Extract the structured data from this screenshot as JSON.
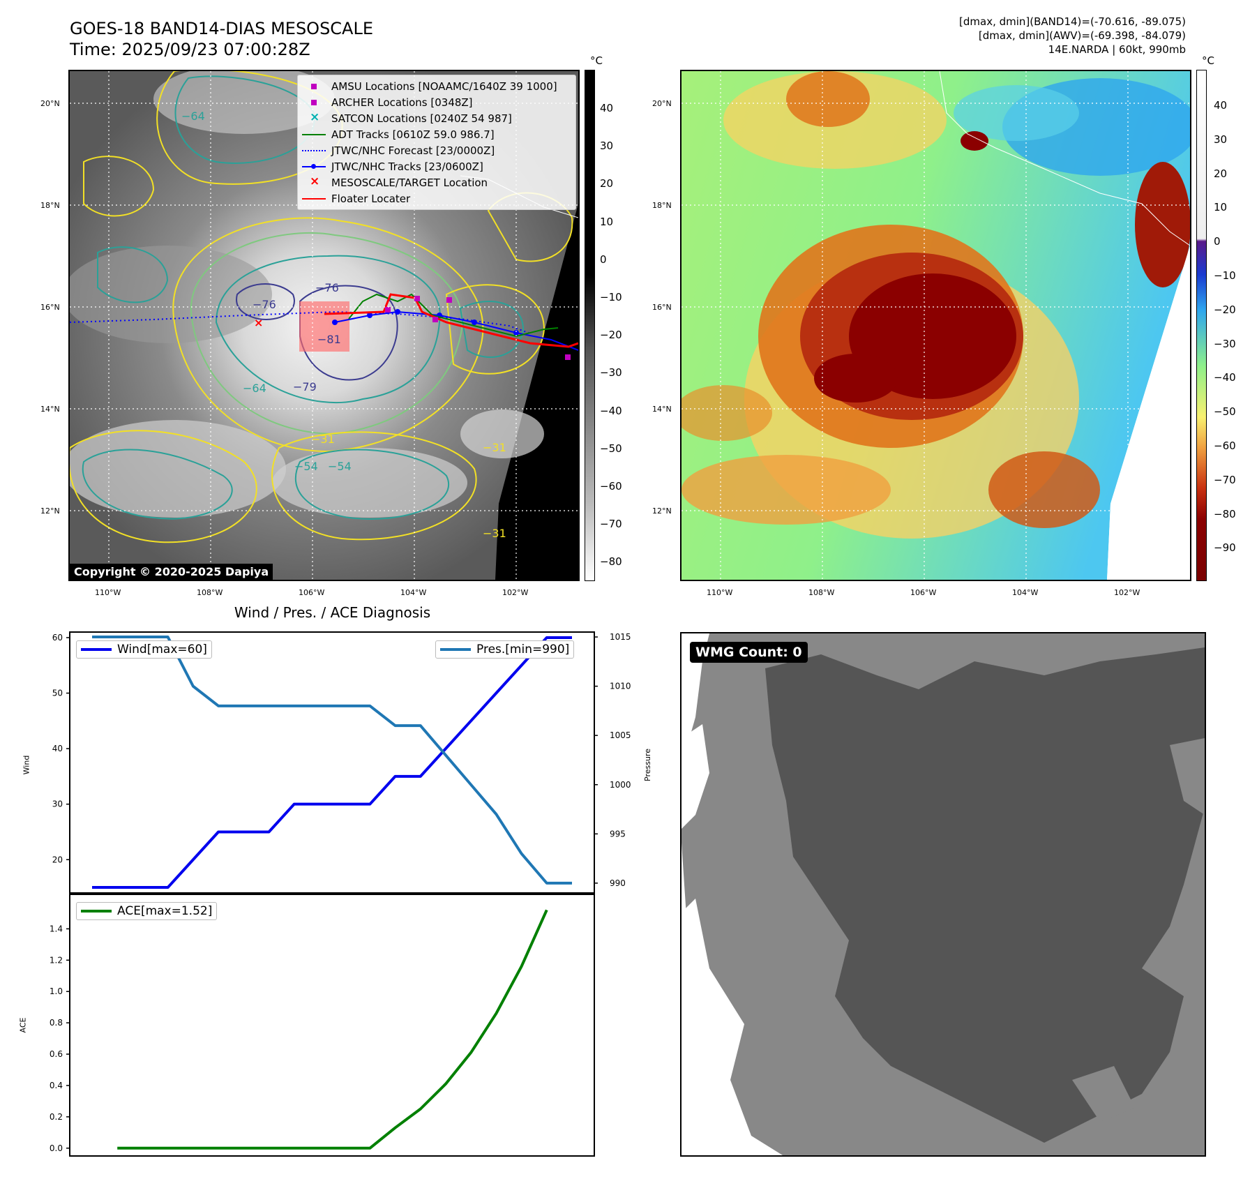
{
  "header": {
    "title_line1": "GOES-18 BAND14-DIAS MESOSCALE",
    "title_line2": "Time: 2025/09/23 07:00:28Z",
    "info_line1": "[dmax, dmin](BAND14)=(-70.616, -89.075)",
    "info_line2": "[dmax, dmin](AWV)=(-69.398, -84.079)",
    "info_line3": "14E.NARDA | 60kt, 990mb"
  },
  "map_axes": {
    "lat_labels": [
      "20°N",
      "18°N",
      "16°N",
      "14°N",
      "12°N"
    ],
    "lon_labels": [
      "110°W",
      "108°W",
      "106°W",
      "104°W",
      "102°W"
    ]
  },
  "colorbar_gray": {
    "unit": "°C",
    "ticks": [
      "40",
      "30",
      "20",
      "10",
      "0",
      "−10",
      "−20",
      "−30",
      "−40",
      "−50",
      "−60",
      "−70",
      "−80"
    ]
  },
  "colorbar_color": {
    "unit": "°C",
    "ticks": [
      "40",
      "30",
      "20",
      "10",
      "0",
      "−10",
      "−20",
      "−30",
      "−40",
      "−50",
      "−60",
      "−70",
      "−80",
      "−90"
    ]
  },
  "map_legend": [
    {
      "label": "AMSU Locations [NOAAMC/1640Z 39 1000]",
      "symbol": "square",
      "color": "#c000c0"
    },
    {
      "label": "ARCHER Locations [0348Z]",
      "symbol": "square",
      "color": "#c000c0"
    },
    {
      "label": "SATCON Locations [0240Z 54 987]",
      "symbol": "x",
      "color": "#00b0b0"
    },
    {
      "label": "ADT Tracks [0610Z 59.0 986.7]",
      "symbol": "line",
      "color": "#008000"
    },
    {
      "label": "JTWC/NHC Forecast [23/0000Z]",
      "symbol": "dotted",
      "color": "#0000ff"
    },
    {
      "label": "JTWC/NHC Tracks [23/0600Z]",
      "symbol": "line-dot",
      "color": "#0000ff"
    },
    {
      "label": "MESOSCALE/TARGET Location",
      "symbol": "x",
      "color": "#ff0000"
    },
    {
      "label": "Floater Locater",
      "symbol": "line",
      "color": "#ff0000"
    }
  ],
  "contour_labels": [
    "−76",
    "−76",
    "−81",
    "−64",
    "−79",
    "−31",
    "−31",
    "−54",
    "−31",
    "−54",
    "−64"
  ],
  "copyright": "Copyright © 2020-2025 Dapiya",
  "wmg_count": "WMG Count: 0",
  "chart_data": [
    {
      "type": "line",
      "title": "Wind / Pres. / ACE Diagnosis",
      "x": [
        0,
        1,
        2,
        3,
        4,
        5,
        6,
        7,
        8,
        9,
        10,
        11,
        12,
        13,
        14,
        15,
        16,
        17,
        18,
        19
      ],
      "ylabel": "Wind",
      "y2label": "Pressure",
      "ylim": [
        14,
        61
      ],
      "y2lim": [
        989,
        1015.5
      ],
      "yticks": [
        20,
        30,
        40,
        50,
        60
      ],
      "y2ticks": [
        990,
        995,
        1000,
        1005,
        1010,
        1015
      ],
      "series": [
        {
          "name": "Wind[max=60]",
          "axis": "left",
          "color": "#0000ee",
          "values": [
            15,
            15,
            15,
            15,
            20,
            25,
            25,
            25,
            30,
            30,
            30,
            30,
            35,
            35,
            40,
            45,
            50,
            55,
            60,
            60
          ]
        },
        {
          "name": "Pres.[min=990]",
          "axis": "right",
          "color": "#1f77b4",
          "values": [
            1015,
            1015,
            1015,
            1015,
            1010,
            1008,
            1008,
            1008,
            1008,
            1008,
            1008,
            1008,
            1006,
            1006,
            1003,
            1000,
            997,
            993,
            990,
            990
          ]
        }
      ]
    },
    {
      "type": "line",
      "x": [
        0,
        1,
        2,
        3,
        4,
        5,
        6,
        7,
        8,
        9,
        10,
        11,
        12,
        13,
        14,
        15,
        16,
        17,
        18
      ],
      "ylabel": "ACE",
      "ylim": [
        -0.05,
        1.62
      ],
      "yticks": [
        "0.0",
        "0.2",
        "0.4",
        "0.6",
        "0.8",
        "1.0",
        "1.2",
        "1.4"
      ],
      "series": [
        {
          "name": "ACE[max=1.52]",
          "color": "#008000",
          "values": [
            0,
            0,
            0,
            0,
            0,
            0,
            0,
            0,
            0,
            0,
            0,
            0.13,
            0.25,
            0.41,
            0.61,
            0.86,
            1.16,
            1.52,
            1.52
          ]
        }
      ]
    }
  ]
}
